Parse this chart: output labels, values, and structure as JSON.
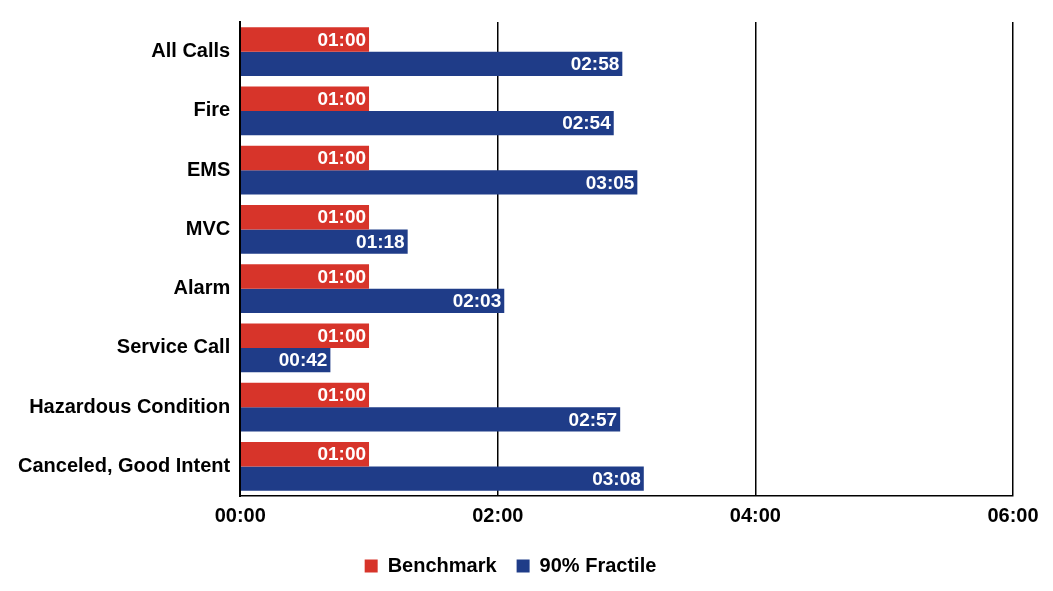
{
  "chart_data": {
    "type": "bar",
    "orientation": "horizontal",
    "categories": [
      "All Calls",
      "Fire",
      "EMS",
      "MVC",
      "Alarm",
      "Service Call",
      "Hazardous Condition",
      "Canceled, Good Intent"
    ],
    "series": [
      {
        "name": "Benchmark",
        "color": "#d7342a",
        "values": [
          60,
          60,
          60,
          60,
          60,
          60,
          60,
          60
        ],
        "value_labels": [
          "01:00",
          "01:00",
          "01:00",
          "01:00",
          "01:00",
          "01:00",
          "01:00",
          "01:00"
        ]
      },
      {
        "name": "90% Fractile",
        "color": "#1f3c88",
        "values": [
          178,
          174,
          185,
          78,
          123,
          42,
          177,
          188
        ],
        "value_labels": [
          "02:58",
          "02:54",
          "03:05",
          "01:18",
          "02:03",
          "00:42",
          "02:57",
          "03:08"
        ]
      }
    ],
    "xlim": [
      0,
      360
    ],
    "xticks": [
      {
        "value": 0,
        "label": "00:00"
      },
      {
        "value": 120,
        "label": "02:00"
      },
      {
        "value": 240,
        "label": "04:00"
      },
      {
        "value": 360,
        "label": "06:00"
      }
    ],
    "grid": "x",
    "legend": "bottom"
  }
}
